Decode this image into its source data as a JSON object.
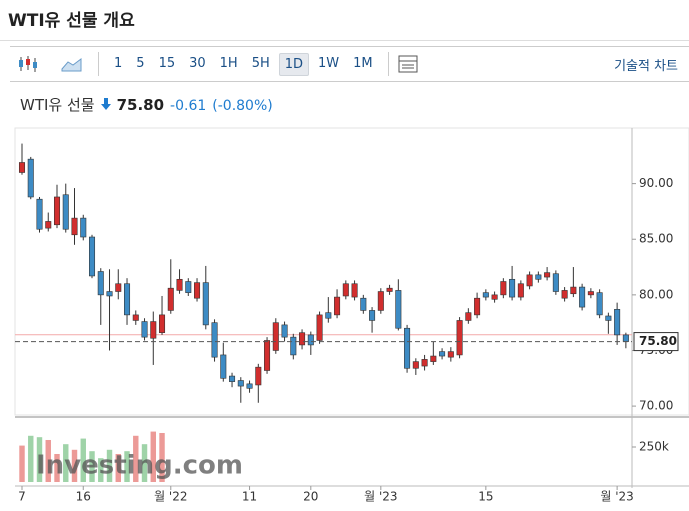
{
  "header": {
    "title": "WTI유 선물 개요"
  },
  "toolbar": {
    "intervals": [
      "1",
      "5",
      "15",
      "30",
      "1H",
      "5H",
      "1D",
      "1W",
      "1M"
    ],
    "selected_index": 6,
    "technical": "기술적 차트"
  },
  "quote": {
    "name": "WTI유 선물",
    "price": "75.80",
    "change": "-0.61",
    "change_pct": "(-0.80%)"
  },
  "chart_data": {
    "type": "candlestick",
    "up_color": "#d12e2e",
    "down_color": "#3d8bc4",
    "watermark": "Investing.com",
    "open": [
      91.0,
      92.2,
      88.6,
      86.0,
      86.3,
      89.0,
      85.4,
      86.9,
      85.2,
      82.1,
      80.3,
      80.3,
      81.0,
      77.7,
      77.6,
      76.1,
      76.6,
      78.6,
      80.4,
      81.2,
      79.7,
      81.1,
      77.5,
      74.6,
      72.7,
      72.3,
      72.0,
      71.9,
      73.2,
      75.0,
      77.3,
      76.2,
      75.5,
      76.4,
      75.9,
      78.4,
      78.2,
      79.9,
      79.8,
      79.7,
      78.6,
      78.6,
      80.3,
      80.4,
      77.0,
      73.4,
      73.6,
      74.0,
      74.9,
      74.4,
      74.6,
      77.7,
      78.2,
      80.2,
      79.6,
      80.0,
      81.4,
      79.8,
      80.8,
      81.8,
      81.6,
      81.9,
      79.7,
      80.1,
      80.7,
      80.0,
      80.2,
      78.1,
      78.7,
      76.4
    ],
    "high": [
      93.6,
      92.4,
      88.8,
      87.4,
      89.9,
      90.0,
      89.6,
      87.2,
      85.4,
      82.4,
      82.3,
      82.3,
      81.5,
      78.6,
      77.9,
      78.5,
      79.9,
      83.2,
      82.3,
      81.5,
      81.5,
      82.6,
      77.8,
      75.7,
      73.0,
      72.6,
      72.3,
      73.8,
      76.2,
      77.9,
      77.6,
      76.5,
      76.9,
      76.7,
      78.5,
      79.8,
      80.5,
      81.3,
      81.3,
      80.0,
      78.9,
      80.6,
      80.9,
      81.4,
      77.3,
      74.3,
      74.6,
      75.8,
      75.2,
      75.3,
      78.0,
      78.8,
      80.2,
      80.5,
      80.3,
      81.5,
      82.6,
      81.3,
      82.1,
      82.1,
      82.5,
      82.2,
      80.7,
      82.5,
      81.0,
      80.6,
      80.5,
      78.4,
      79.3,
      76.6
    ],
    "low": [
      90.8,
      88.6,
      85.6,
      85.7,
      86.0,
      85.6,
      84.5,
      84.9,
      81.5,
      77.3,
      75.0,
      79.6,
      77.3,
      77.3,
      75.9,
      73.7,
      76.4,
      78.3,
      80.1,
      79.9,
      79.4,
      76.9,
      74.0,
      72.2,
      71.7,
      70.3,
      71.2,
      70.3,
      72.9,
      74.7,
      75.8,
      74.2,
      75.1,
      74.6,
      75.6,
      77.5,
      77.9,
      79.6,
      79.5,
      78.3,
      76.6,
      78.3,
      80.0,
      76.8,
      73.0,
      72.8,
      73.2,
      73.7,
      74.2,
      74.0,
      74.3,
      77.4,
      77.9,
      79.5,
      79.3,
      79.7,
      79.5,
      79.5,
      80.5,
      81.1,
      81.3,
      80.0,
      79.4,
      79.8,
      78.6,
      79.7,
      77.9,
      76.5,
      75.5,
      75.2
    ],
    "close": [
      91.9,
      88.8,
      85.9,
      86.6,
      88.8,
      85.9,
      86.9,
      85.2,
      81.7,
      80.0,
      79.9,
      81.0,
      78.2,
      78.2,
      76.2,
      77.6,
      78.2,
      80.6,
      81.4,
      80.2,
      81.1,
      77.3,
      74.4,
      72.5,
      72.2,
      71.8,
      71.6,
      73.5,
      75.9,
      77.5,
      76.2,
      74.6,
      76.6,
      75.5,
      78.2,
      77.9,
      79.8,
      81.0,
      81.0,
      78.6,
      77.7,
      80.3,
      80.6,
      77.0,
      73.4,
      74.0,
      74.2,
      74.5,
      74.5,
      74.9,
      77.7,
      78.4,
      79.7,
      79.8,
      80.0,
      81.2,
      79.8,
      81.0,
      81.8,
      81.4,
      82.0,
      80.3,
      80.4,
      80.7,
      78.9,
      80.3,
      78.2,
      77.7,
      76.4,
      75.8
    ],
    "volume": [
      260000,
      330000,
      320000,
      300000,
      200000,
      270000,
      230000,
      310000,
      220000,
      170000,
      230000,
      200000,
      220000,
      330000,
      270000,
      360000,
      350000,
      null,
      null,
      null,
      null,
      null,
      null,
      null,
      null,
      null,
      null,
      null,
      null,
      null,
      null,
      null,
      null,
      null,
      null,
      null,
      null,
      null,
      null,
      null,
      null,
      null,
      null,
      null,
      null,
      null,
      null,
      null,
      null,
      null,
      null,
      null,
      null,
      null,
      null,
      null,
      null,
      null,
      null,
      null,
      null,
      null,
      null,
      null,
      null,
      null,
      null,
      null,
      null,
      null
    ],
    "volume_up_color": "#9fd3a8",
    "volume_down_color": "#ec9a97",
    "reference_line": 76.41,
    "reference_color": "#f4a9a9",
    "xlim": [
      -0.8,
      69.7
    ],
    "xticks": [
      {
        "value": 0,
        "label": "7"
      },
      {
        "value": 7,
        "label": "16"
      },
      {
        "value": 17,
        "label": "월 '22"
      },
      {
        "value": 26,
        "label": "11"
      },
      {
        "value": 33,
        "label": "20"
      },
      {
        "value": 41,
        "label": "월 '23"
      },
      {
        "value": 53,
        "label": "15"
      },
      {
        "value": 68,
        "label": "월 '23"
      }
    ],
    "ylim": [
      69.2,
      95.0
    ],
    "yticks": [
      {
        "value": 70,
        "label": "70.00"
      },
      {
        "value": 75,
        "label": "75.00"
      },
      {
        "value": 80,
        "label": "80.00"
      },
      {
        "value": 85,
        "label": "85.00"
      },
      {
        "value": 90,
        "label": "90.00"
      }
    ],
    "volume_ylim": [
      0,
      457000
    ],
    "volume_yticks": [
      {
        "value": 250000,
        "label": "250k"
      }
    ]
  }
}
